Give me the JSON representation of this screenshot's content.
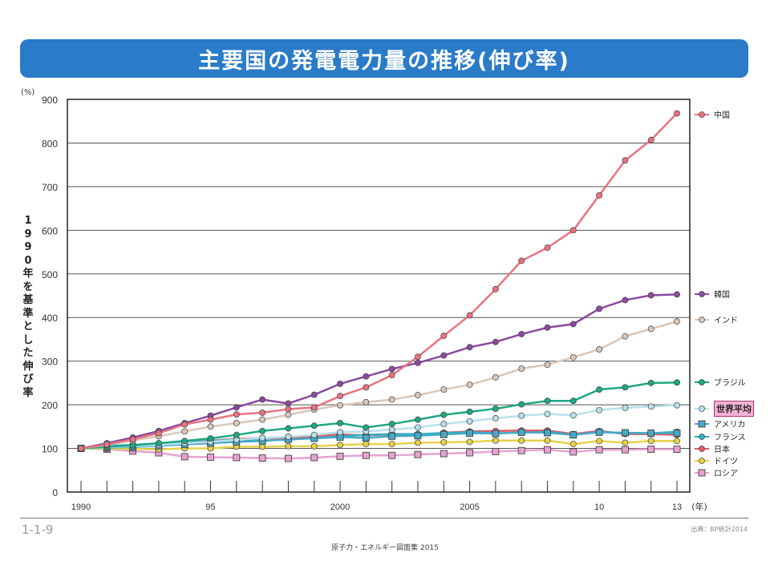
{
  "page": {
    "title": "主要国の発電電力量の推移(伸び率)",
    "figure_number": "1-1-9",
    "source": "出典：BP統計2014",
    "footer": "原子力・エネルギー図面集 2015"
  },
  "chart_data": {
    "type": "line",
    "title": "主要国の発電電力量の推移(伸び率)",
    "xlabel": "(年)",
    "ylabel": "1990年を基準とした伸び率",
    "yunit": "(%)",
    "ylim": [
      0,
      900
    ],
    "yticks": [
      0,
      100,
      200,
      300,
      400,
      500,
      600,
      700,
      800,
      900
    ],
    "xlim": [
      1990,
      2013
    ],
    "xticks": [
      {
        "value": 1990,
        "label": "1990"
      },
      {
        "value": 1995,
        "label": "95"
      },
      {
        "value": 2000,
        "label": "2000"
      },
      {
        "value": 2005,
        "label": "2005"
      },
      {
        "value": 2010,
        "label": "10"
      },
      {
        "value": 2013,
        "label": "13"
      }
    ],
    "grid": true,
    "legend_position": "right",
    "x": [
      1990,
      1991,
      1992,
      1993,
      1994,
      1995,
      1996,
      1997,
      1998,
      1999,
      2000,
      2001,
      2002,
      2003,
      2004,
      2005,
      2006,
      2007,
      2008,
      2009,
      2010,
      2011,
      2012,
      2013
    ],
    "series": [
      {
        "name": "中国",
        "color": "#e8737f",
        "marker": "circle",
        "highlight": false,
        "values": [
          100,
          109,
          121,
          135,
          155,
          166,
          178,
          182,
          190,
          194,
          220,
          240,
          268,
          310,
          358,
          405,
          465,
          530,
          560,
          600,
          680,
          760,
          807,
          868
        ]
      },
      {
        "name": "韓国",
        "color": "#8b4a9e",
        "marker": "circle",
        "highlight": false,
        "values": [
          100,
          112,
          125,
          140,
          158,
          175,
          194,
          212,
          203,
          223,
          248,
          265,
          282,
          296,
          313,
          332,
          344,
          362,
          377,
          385,
          420,
          440,
          451,
          453
        ]
      },
      {
        "name": "インド",
        "color": "#d9c7b8",
        "marker": "circle",
        "highlight": false,
        "values": [
          100,
          108,
          118,
          128,
          139,
          150,
          158,
          166,
          177,
          189,
          199,
          206,
          212,
          222,
          235,
          246,
          263,
          283,
          292,
          309,
          327,
          357,
          374,
          391
        ]
      },
      {
        "name": "ブラジル",
        "color": "#1ea882",
        "marker": "circle",
        "highlight": false,
        "values": [
          100,
          104,
          107,
          112,
          117,
          123,
          131,
          140,
          146,
          152,
          158,
          148,
          156,
          166,
          177,
          184,
          191,
          201,
          209,
          209,
          235,
          240,
          250,
          251
        ]
      },
      {
        "name": "世界平均",
        "color": "#b8e0ec",
        "marker": "circle",
        "highlight": true,
        "values": [
          100,
          103,
          105,
          108,
          112,
          115,
          120,
          124,
          127,
          131,
          137,
          139,
          143,
          148,
          156,
          162,
          169,
          175,
          179,
          176,
          188,
          193,
          196,
          199
        ]
      },
      {
        "name": "アメリカ",
        "color": "#4aa8c4",
        "marker": "square",
        "highlight": false,
        "values": [
          100,
          102,
          103,
          106,
          109,
          112,
          115,
          117,
          121,
          123,
          126,
          124,
          128,
          129,
          132,
          135,
          134,
          137,
          136,
          131,
          137,
          136,
          135,
          135
        ]
      },
      {
        "name": "フランス",
        "color": "#2bb0c8",
        "marker": "circle",
        "highlight": false,
        "values": [
          100,
          106,
          108,
          112,
          113,
          117,
          121,
          118,
          120,
          124,
          128,
          131,
          133,
          133,
          135,
          137,
          135,
          136,
          138,
          131,
          138,
          135,
          135,
          138
        ]
      },
      {
        "name": "日本",
        "color": "#e35a64",
        "marker": "circle",
        "highlight": false,
        "values": [
          100,
          104,
          106,
          107,
          113,
          118,
          122,
          124,
          124,
          128,
          132,
          130,
          132,
          131,
          136,
          139,
          140,
          141,
          141,
          133,
          140,
          133,
          133,
          131
        ]
      },
      {
        "name": "ドイツ",
        "color": "#e6d24a",
        "marker": "circle",
        "highlight": false,
        "values": [
          100,
          99,
          99,
          98,
          100,
          100,
          104,
          104,
          105,
          105,
          108,
          110,
          110,
          113,
          114,
          115,
          118,
          118,
          118,
          110,
          117,
          113,
          117,
          117
        ]
      },
      {
        "name": "ロシア",
        "color": "#e6a3d2",
        "marker": "square",
        "highlight": false,
        "values": [
          100,
          98,
          94,
          90,
          81,
          80,
          79,
          78,
          77,
          79,
          82,
          84,
          84,
          86,
          88,
          90,
          93,
          95,
          97,
          92,
          97,
          97,
          98,
          98
        ]
      }
    ]
  }
}
